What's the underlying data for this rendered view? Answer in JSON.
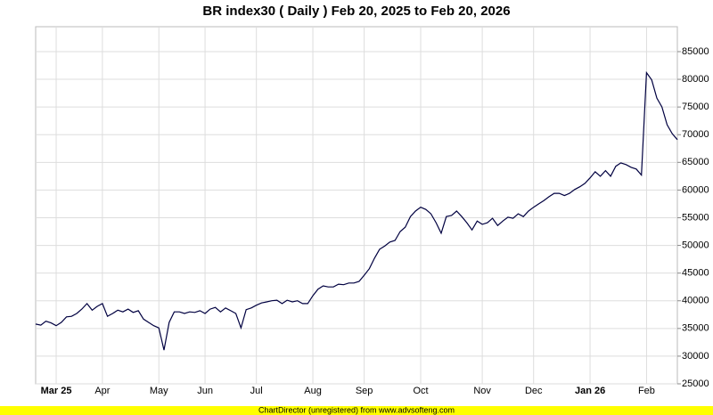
{
  "chart_data": {
    "type": "line",
    "title": "BR index30 ( Daily ) Feb 20, 2025 to Feb 20, 2026",
    "footer": "ChartDirector (unregistered) from www.advsofteng.com",
    "categories": [
      null,
      null,
      null,
      null,
      "Mar 25",
      null,
      null,
      null,
      null,
      null,
      null,
      null,
      null,
      "Apr",
      null,
      null,
      null,
      null,
      null,
      null,
      null,
      null,
      null,
      null,
      "May",
      null,
      null,
      null,
      null,
      null,
      null,
      null,
      null,
      "Jun",
      null,
      null,
      null,
      null,
      null,
      null,
      null,
      null,
      null,
      "Jul",
      null,
      null,
      null,
      null,
      null,
      null,
      null,
      null,
      null,
      null,
      "Aug",
      null,
      null,
      null,
      null,
      null,
      null,
      null,
      null,
      null,
      "Sep",
      null,
      null,
      null,
      null,
      null,
      null,
      null,
      null,
      null,
      null,
      "Oct",
      null,
      null,
      null,
      null,
      null,
      null,
      null,
      null,
      null,
      null,
      null,
      "Nov",
      null,
      null,
      null,
      null,
      null,
      null,
      null,
      null,
      null,
      "Dec",
      null,
      null,
      null,
      null,
      null,
      null,
      null,
      null,
      null,
      null,
      "Jan 26",
      null,
      null,
      null,
      null,
      null,
      null,
      null,
      null,
      null,
      null,
      "Feb",
      null,
      null,
      null,
      null,
      null,
      null
    ],
    "series": [
      {
        "name": "BR index30",
        "color": "#000040",
        "values": [
          35800,
          35600,
          36300,
          36000,
          35500,
          36100,
          37100,
          37200,
          37700,
          38500,
          39500,
          38300,
          39000,
          39500,
          37200,
          37700,
          38300,
          38000,
          38500,
          37900,
          38200,
          36700,
          36100,
          35500,
          35100,
          31100,
          36100,
          38000,
          38000,
          37700,
          38000,
          37900,
          38200,
          37700,
          38500,
          38800,
          38000,
          38700,
          38200,
          37700,
          35100,
          38400,
          38700,
          39200,
          39600,
          39800,
          40000,
          40100,
          39500,
          40100,
          39800,
          40000,
          39500,
          39500,
          40900,
          42100,
          42700,
          42500,
          42500,
          43000,
          42900,
          43200,
          43200,
          43500,
          44600,
          45800,
          47700,
          49300,
          49900,
          50600,
          50900,
          52500,
          53300,
          55200,
          56200,
          56900,
          56500,
          55700,
          54100,
          52200,
          55200,
          55400,
          56200,
          55200,
          54100,
          52800,
          54400,
          53800,
          54100,
          54900,
          53600,
          54400,
          55100,
          54900,
          55700,
          55200,
          56200,
          56900,
          57500,
          58100,
          58800,
          59400,
          59400,
          59000,
          59400,
          60100,
          60600,
          61200,
          62200,
          63300,
          62500,
          63500,
          62500,
          64300,
          64900,
          64600,
          64100,
          63800,
          62700,
          81200,
          79900,
          76600,
          75000,
          71800,
          70200,
          69100
        ]
      }
    ],
    "ylim": [
      25000,
      89500
    ],
    "yticks": [
      25000,
      30000,
      35000,
      40000,
      45000,
      50000,
      55000,
      60000,
      65000,
      70000,
      75000,
      80000,
      85000
    ],
    "grid": true
  }
}
